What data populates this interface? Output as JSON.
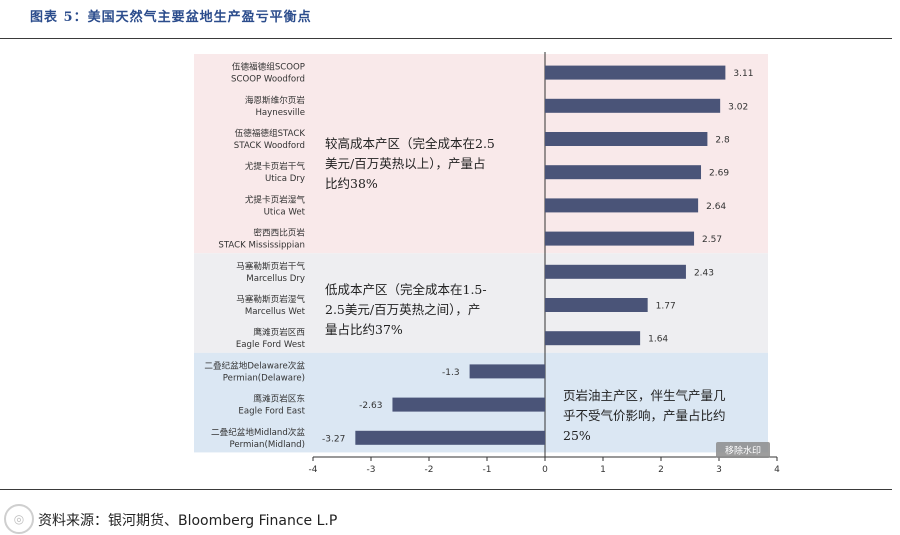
{
  "figure": {
    "title": "图表 5：美国天然气主要盆地生产盈亏平衡点",
    "source": "资料来源：银河期货、Bloomberg Finance L.P",
    "watermark_button": "移除水印"
  },
  "colors": {
    "bar": "#4a5478",
    "band_high": "#f9e9ea",
    "band_low": "#eeeef1",
    "band_oil": "#dbe7f3",
    "axis": "#333333"
  },
  "chart_data": {
    "type": "bar",
    "orientation": "horizontal",
    "xlim": [
      -4,
      4
    ],
    "xticks": [
      "-4",
      "-3",
      "-2",
      "-1",
      "0",
      "1",
      "2",
      "3",
      "4"
    ],
    "categories": [
      [
        "伍德福德组SCOOP",
        "SCOOP Woodford"
      ],
      [
        "海恩斯维尔页岩",
        "Haynesville"
      ],
      [
        "伍德福德组STACK",
        "STACK Woodford"
      ],
      [
        "尤提卡页岩干气",
        "Utica Dry"
      ],
      [
        "尤提卡页岩湿气",
        "Utica Wet"
      ],
      [
        "密西西比页岩",
        "STACK Mississippian"
      ],
      [
        "马塞勒斯页岩干气",
        "Marcellus Dry"
      ],
      [
        "马塞勒斯页岩湿气",
        "Marcellus Wet"
      ],
      [
        "鹰滩页岩区西",
        "Eagle Ford West"
      ],
      [
        "二叠纪盆地Delaware次盆",
        "Permian(Delaware)"
      ],
      [
        "鹰滩页岩区东",
        "Eagle Ford East"
      ],
      [
        "二叠纪盆地Midland次盆",
        "Permian(Midland)"
      ]
    ],
    "values": [
      3.11,
      3.02,
      2.8,
      2.69,
      2.64,
      2.57,
      2.43,
      1.77,
      1.64,
      -1.3,
      -2.63,
      -3.27
    ],
    "value_labels": [
      "3.11",
      "3.02",
      "2.8",
      "2.69",
      "2.64",
      "2.57",
      "2.43",
      "1.77",
      "1.64",
      "-1.3",
      "-2.63",
      "-3.27"
    ],
    "bands": [
      {
        "name": "high",
        "from": 0,
        "to": 5,
        "annotation": [
          "较高成本产区（完全成本在2.5",
          "美元/百万英热以上），产量占",
          "比约38%"
        ]
      },
      {
        "name": "low",
        "from": 6,
        "to": 8,
        "annotation": [
          "低成本产区（完全成本在1.5-",
          "2.5美元/百万英热之间），产",
          "量占比约37%"
        ]
      },
      {
        "name": "oil",
        "from": 9,
        "to": 11,
        "annotation": [
          "页岩油主产区，伴生气产量几",
          "乎不受气价影响，产量占比约",
          "25%"
        ]
      }
    ]
  }
}
